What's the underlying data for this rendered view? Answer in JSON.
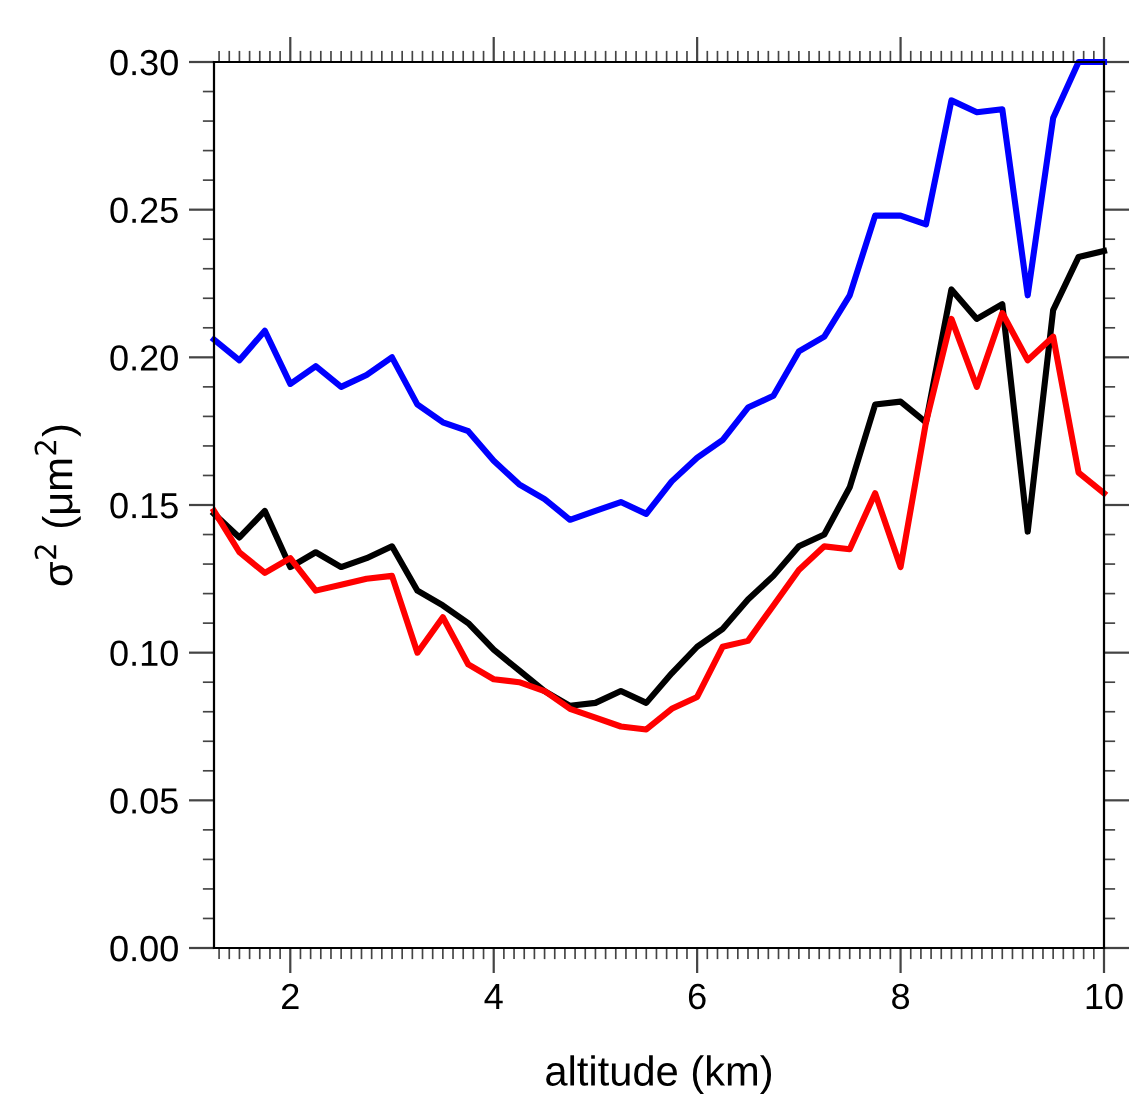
{
  "chart_data": {
    "type": "line",
    "xlabel": "altitude (km)",
    "ylabel": "σ$^{2}$ (μm$^{2}$)",
    "x": [
      1.25,
      1.5,
      1.75,
      2.0,
      2.25,
      2.5,
      2.75,
      3.0,
      3.25,
      3.5,
      3.75,
      4.0,
      4.25,
      4.5,
      4.75,
      5.0,
      5.25,
      5.5,
      5.75,
      6.0,
      6.25,
      6.5,
      6.75,
      7.0,
      7.25,
      7.5,
      7.75,
      8.0,
      8.25,
      8.5,
      8.75,
      9.0,
      9.25,
      9.5,
      9.75,
      10.0
    ],
    "series": [
      {
        "color": "#0000ff",
        "values": [
          0.206,
          0.199,
          0.209,
          0.191,
          0.197,
          0.19,
          0.194,
          0.2,
          0.184,
          0.178,
          0.175,
          0.165,
          0.157,
          0.152,
          0.145,
          0.148,
          0.151,
          0.147,
          0.158,
          0.166,
          0.172,
          0.183,
          0.187,
          0.202,
          0.207,
          0.221,
          0.248,
          0.248,
          0.245,
          0.287,
          0.283,
          0.284,
          0.221,
          0.281,
          0.3,
          0.3
        ]
      },
      {
        "color": "#000000",
        "values": [
          0.147,
          0.139,
          0.148,
          0.129,
          0.134,
          0.129,
          0.132,
          0.136,
          0.121,
          0.116,
          0.11,
          0.101,
          0.094,
          0.087,
          0.082,
          0.083,
          0.087,
          0.083,
          0.093,
          0.102,
          0.108,
          0.118,
          0.126,
          0.136,
          0.14,
          0.156,
          0.184,
          0.185,
          0.178,
          0.223,
          0.213,
          0.218,
          0.141,
          0.216,
          0.234,
          0.236
        ]
      },
      {
        "color": "#ff0000",
        "values": [
          0.148,
          0.134,
          0.127,
          0.132,
          0.121,
          0.123,
          0.125,
          0.126,
          0.1,
          0.112,
          0.096,
          0.091,
          0.09,
          0.087,
          0.081,
          0.078,
          0.075,
          0.074,
          0.081,
          0.085,
          0.102,
          0.104,
          0.116,
          0.128,
          0.136,
          0.135,
          0.154,
          0.129,
          0.178,
          0.213,
          0.19,
          0.215,
          0.199,
          0.207,
          0.161,
          0.154
        ]
      }
    ],
    "xlim": [
      1.25,
      10
    ],
    "xticks": [
      2,
      4,
      6,
      8,
      10
    ],
    "ylim": [
      0,
      0.3
    ],
    "yticks": [
      {
        "value": 0,
        "label": "0.00"
      },
      {
        "value": 0.05,
        "label": "0.05"
      },
      {
        "value": 0.1,
        "label": "0.10"
      },
      {
        "value": 0.15,
        "label": "0.15"
      },
      {
        "value": 0.2,
        "label": "0.20"
      },
      {
        "value": 0.25,
        "label": "0.25"
      },
      {
        "value": 0.3,
        "label": "0.30"
      }
    ],
    "grid": false,
    "legend": false,
    "marker": "none",
    "line_style": "solid"
  }
}
